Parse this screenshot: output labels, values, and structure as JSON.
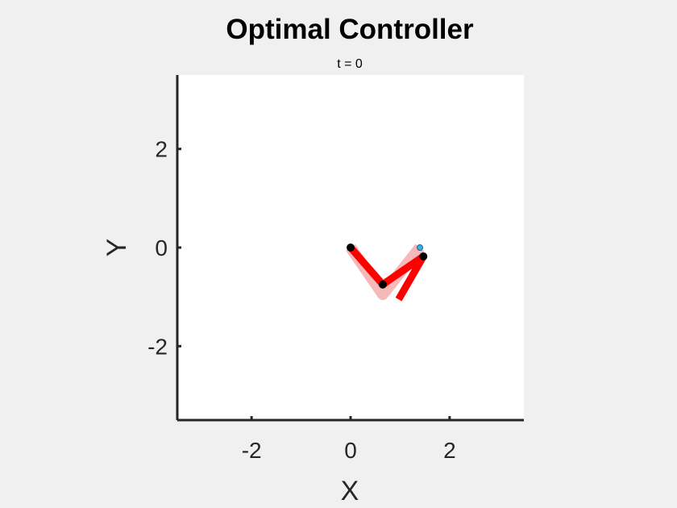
{
  "chart_data": {
    "type": "line",
    "title": "Optimal Controller",
    "subtitle": "t = 0",
    "xlabel": "X",
    "ylabel": "Y",
    "xlim": [
      -3.5,
      3.5
    ],
    "ylim": [
      -3.5,
      3.5
    ],
    "xticks": [
      -2,
      0,
      2
    ],
    "yticks": [
      2,
      0,
      -2
    ],
    "xtick_labels": [
      "-2",
      "0",
      "2"
    ],
    "ytick_labels": [
      "2",
      "0",
      "-2"
    ],
    "grid": false,
    "series": [
      {
        "role": "shadow-arm",
        "color": "#f6b8b8",
        "points": [
          [
            0,
            0
          ],
          [
            0.65,
            -0.95
          ],
          [
            1.4,
            0
          ]
        ]
      },
      {
        "role": "arm",
        "color": "#ff0000",
        "points": [
          [
            0,
            0
          ],
          [
            0.65,
            -0.75
          ],
          [
            1.47,
            -0.18
          ],
          [
            0.97,
            -1.05
          ]
        ]
      },
      {
        "role": "joints",
        "color": "#000000",
        "points": [
          [
            0,
            0
          ],
          [
            0.65,
            -0.75
          ],
          [
            1.47,
            -0.18
          ]
        ]
      },
      {
        "role": "target",
        "color": "#35b4e6",
        "points": [
          [
            1.4,
            0
          ]
        ]
      }
    ]
  }
}
